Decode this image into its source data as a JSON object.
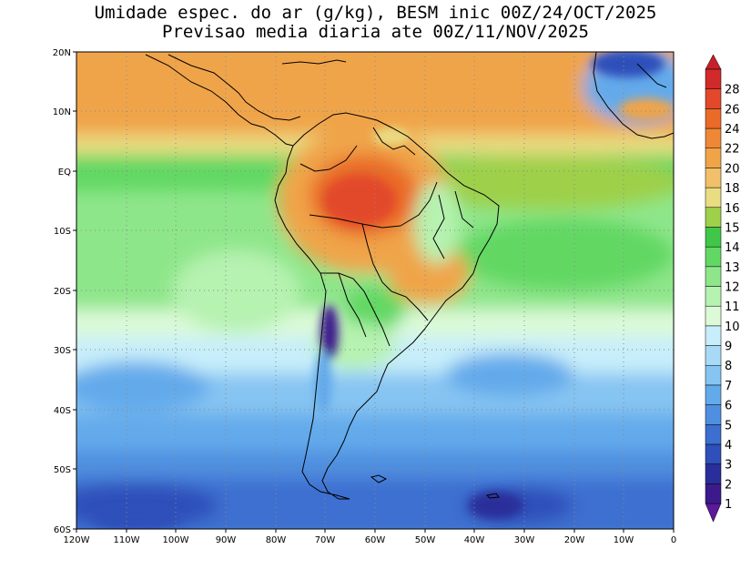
{
  "title": {
    "line1": "Umidade espec. do ar (g/kg), BESM inic 00Z/24/OCT/2025",
    "line2": "Previsao media diaria ate 00Z/11/NOV/2025"
  },
  "axes": {
    "lat_labels": [
      "20N",
      "10N",
      "EQ",
      "10S",
      "20S",
      "30S",
      "40S",
      "50S",
      "60S"
    ],
    "lon_labels": [
      "120W",
      "110W",
      "100W",
      "90W",
      "80W",
      "70W",
      "60W",
      "50W",
      "40W",
      "30W",
      "20W",
      "10W",
      "0"
    ]
  },
  "colorbar": {
    "levels": [
      1,
      2,
      3,
      4,
      5,
      6,
      7,
      8,
      9,
      10,
      11,
      12,
      13,
      14,
      15,
      16,
      18,
      20,
      22,
      24,
      26,
      28
    ],
    "labels": [
      "1",
      "2",
      "3",
      "4",
      "5",
      "6",
      "7",
      "8",
      "9",
      "10",
      "11",
      "12",
      "13",
      "14",
      "15",
      "16",
      "18",
      "20",
      "22",
      "24",
      "26",
      "28"
    ],
    "colors": [
      "#3c1a8c",
      "#2a2e9a",
      "#2f4fba",
      "#3c6fd0",
      "#4f8fe0",
      "#63aaeb",
      "#86c4f2",
      "#a8daf6",
      "#c7eefa",
      "#dcfad8",
      "#b6f2b0",
      "#8ee68a",
      "#62d864",
      "#40c648",
      "#9ed04a",
      "#e9dc82",
      "#f2c06a",
      "#f0a448",
      "#ee8836",
      "#ea6a28",
      "#e2482a",
      "#d02a2a"
    ],
    "under_color": "#5a1a9a",
    "over_color": "#c8202a"
  }
}
